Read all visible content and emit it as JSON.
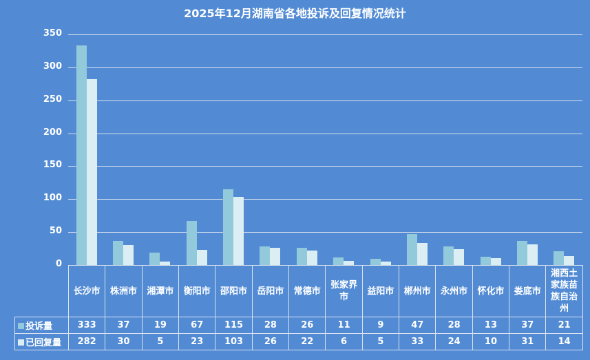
{
  "chart_data": {
    "type": "bar",
    "title": "2025年12月湖南省各地投诉及回复情况统计",
    "xlabel": "",
    "ylabel": "",
    "ylim": [
      0,
      350
    ],
    "yticks": [
      0,
      50,
      100,
      150,
      200,
      250,
      300,
      350
    ],
    "grid": true,
    "legend_position": "data-table",
    "categories": [
      "长沙市",
      "株洲市",
      "湘潭市",
      "衡阳市",
      "邵阳市",
      "岳阳市",
      "常德市",
      "张家界市",
      "益阳市",
      "郴州市",
      "永州市",
      "怀化市",
      "娄底市",
      "湘西土家族苗族自治州"
    ],
    "series": [
      {
        "name": "投诉量",
        "color": "#92cadc",
        "values": [
          333,
          37,
          19,
          67,
          115,
          28,
          26,
          11,
          9,
          47,
          28,
          13,
          37,
          21
        ]
      },
      {
        "name": "已回复量",
        "color": "#dbeef3",
        "values": [
          282,
          30,
          5,
          23,
          103,
          26,
          22,
          6,
          5,
          33,
          24,
          10,
          31,
          14
        ]
      }
    ]
  },
  "colors": {
    "background": "#528bd4",
    "series1": "#92cadc",
    "series2": "#dbeef3",
    "grid": "#d9e2ee"
  }
}
